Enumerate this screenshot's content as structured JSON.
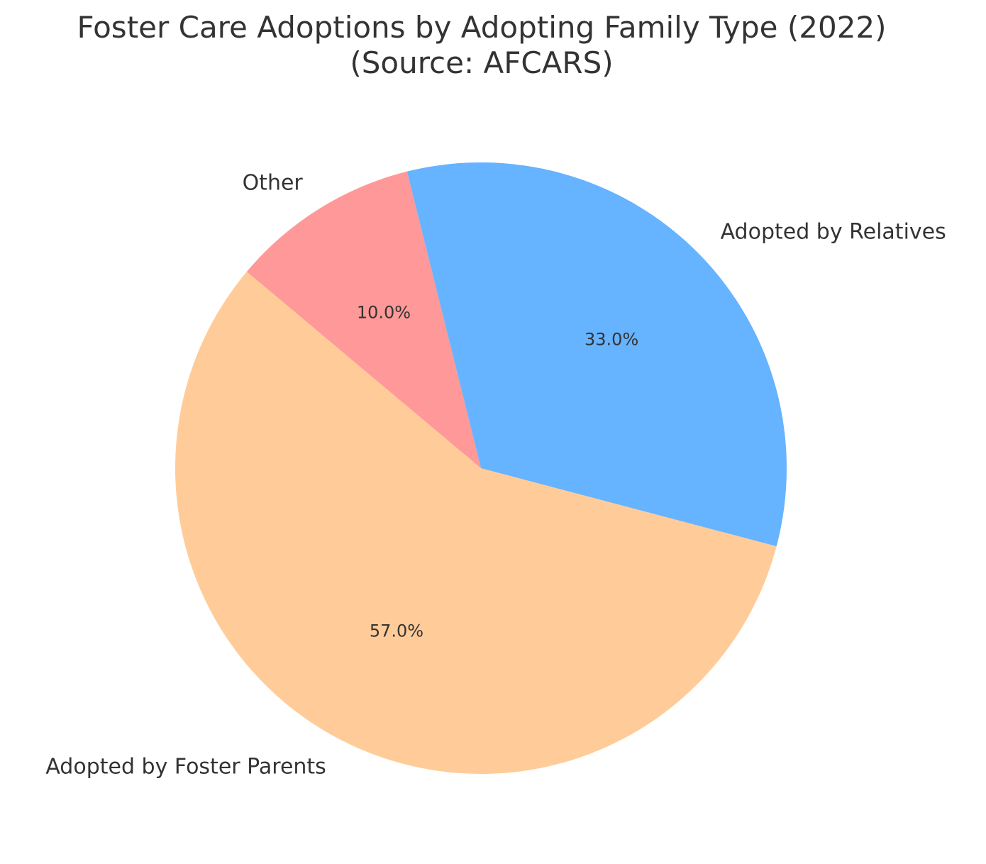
{
  "chart_data": {
    "type": "pie",
    "title": "Foster Care Adoptions by Adopting Family Type (2022)",
    "subtitle": "(Source: AFCARS)",
    "categories": [
      "Adopted by Foster Parents",
      "Adopted by Relatives",
      "Other"
    ],
    "values": [
      57.0,
      33.0,
      10.0
    ],
    "percent_labels": [
      "57.0%",
      "33.0%",
      "10.0%"
    ],
    "colors": [
      "#ffcc99",
      "#66b3ff",
      "#ff9999"
    ],
    "start_angle_deg": 140,
    "direction": "counterclockwise",
    "legend": "none"
  }
}
